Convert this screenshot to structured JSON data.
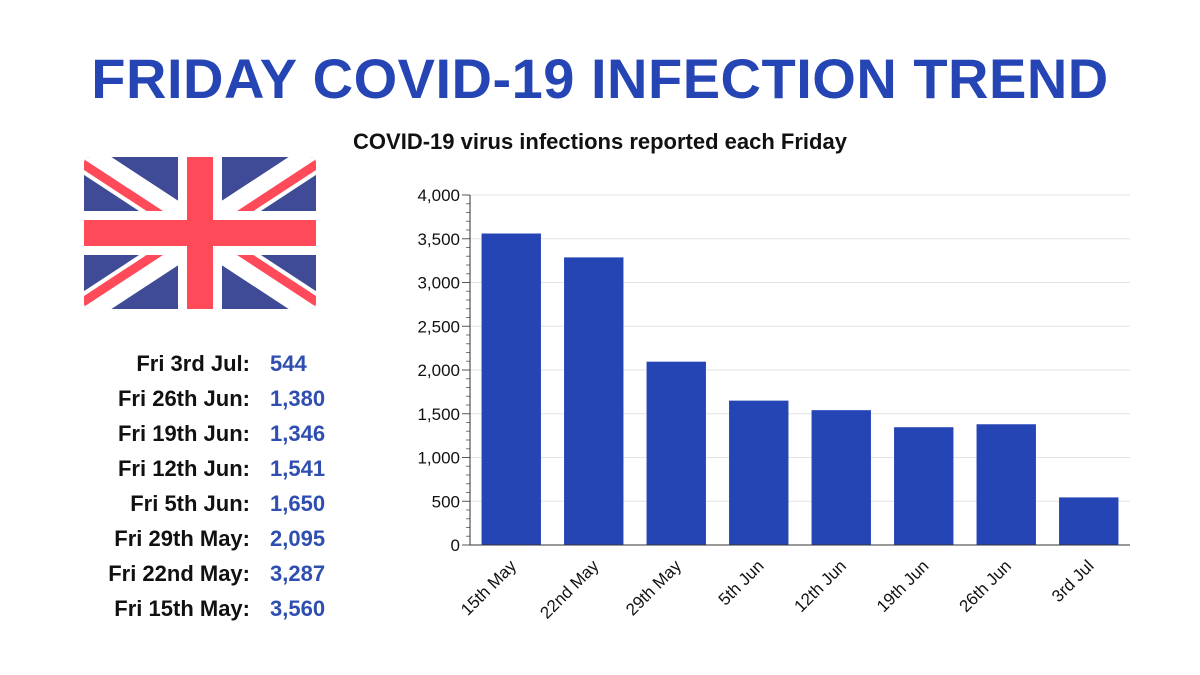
{
  "header": {
    "title": "FRIDAY COVID-19 INFECTION TREND"
  },
  "stats": [
    {
      "label": "Fri 3rd Jul:",
      "value": "544"
    },
    {
      "label": "Fri 26th Jun:",
      "value": "1,380"
    },
    {
      "label": "Fri 19th Jun:",
      "value": "1,346"
    },
    {
      "label": "Fri 12th Jun:",
      "value": "1,541"
    },
    {
      "label": "Fri 5th Jun:",
      "value": "1,650"
    },
    {
      "label": "Fri 29th May:",
      "value": "2,095"
    },
    {
      "label": "Fri 22nd May:",
      "value": "3,287"
    },
    {
      "label": "Fri 15th May:",
      "value": "3,560"
    }
  ],
  "colors": {
    "title": "#2545b5",
    "bar": "#2545b5",
    "stat_value": "#2f4fb0",
    "flag_blue": "#3f4b96",
    "flag_red": "#ff4a5a"
  },
  "chart_data": {
    "type": "bar",
    "title": "COVID-19 virus infections reported each Friday",
    "xlabel": "",
    "ylabel": "",
    "categories": [
      "15th May",
      "22nd May",
      "29th May",
      "5th Jun",
      "12th Jun",
      "19th Jun",
      "26th Jun",
      "3rd Jul"
    ],
    "values": [
      3560,
      3287,
      2095,
      1650,
      1541,
      1346,
      1380,
      544
    ],
    "ylim": [
      0,
      4000
    ],
    "yticks": [
      0,
      500,
      1000,
      1500,
      2000,
      2500,
      3000,
      3500,
      4000
    ],
    "ytick_labels": [
      "0",
      "500",
      "1,000",
      "1,500",
      "2,000",
      "2,500",
      "3,000",
      "3,500",
      "4,000"
    ],
    "grid": true,
    "legend": "none"
  }
}
